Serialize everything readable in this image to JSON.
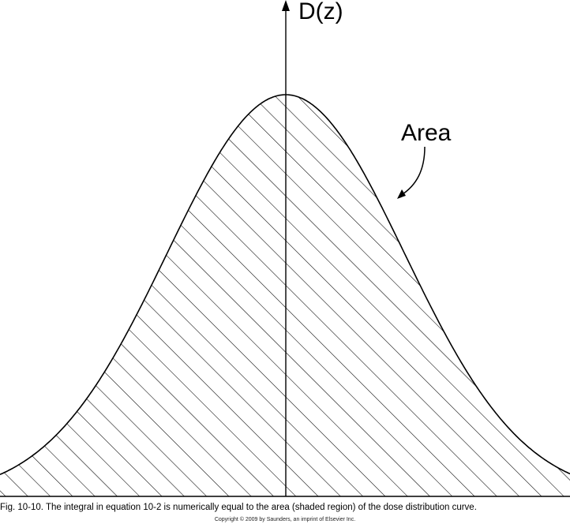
{
  "figure": {
    "axis_label": "D(z)",
    "area_label": "Area",
    "caption": "Fig. 10-10. The integral in equation 10-2 is numerically equal to the area (shaded region) of the dose distribution curve.",
    "copyright": "Copyright © 2009 by Saunders, an imprint of Elsevier Inc.",
    "curve_shape": "gaussian",
    "fill_style": "diagonal-hatch",
    "colors": {
      "line": "#000000",
      "background": "#ffffff"
    }
  }
}
